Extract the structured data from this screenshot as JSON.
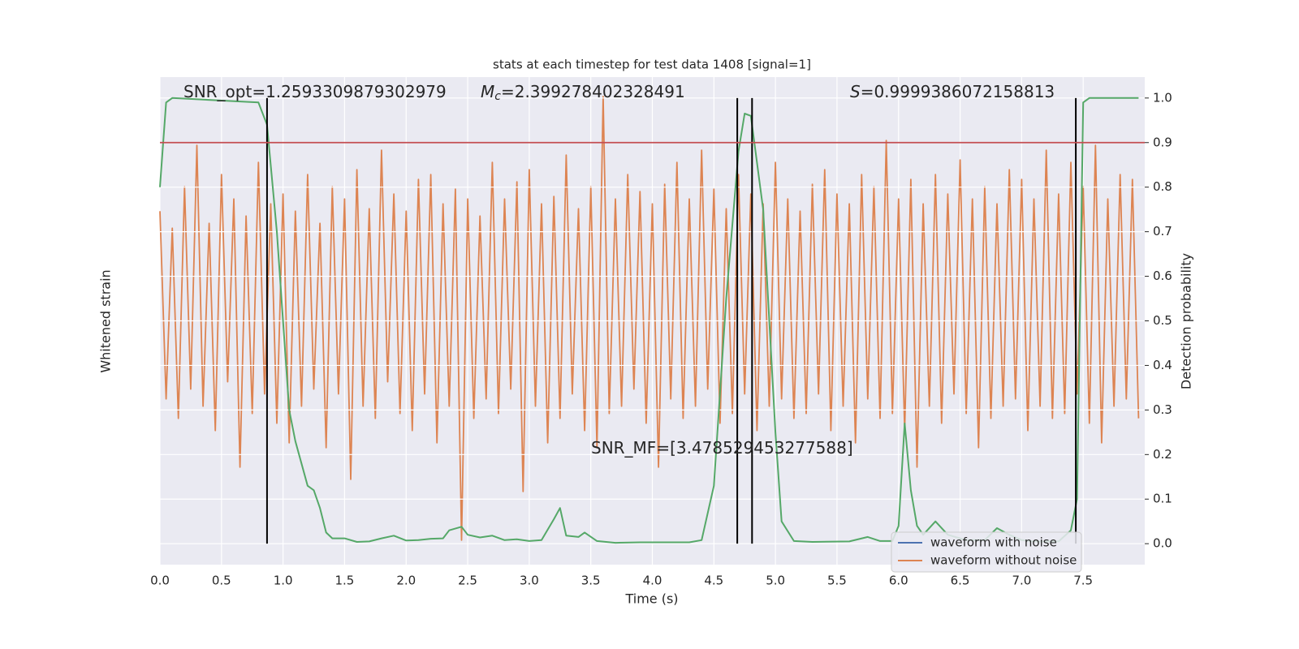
{
  "chart_data": {
    "type": "line",
    "title": "stats at each timestep for test data 1408 [signal=1]",
    "xlabel": "Time (s)",
    "ylabel": "Whitened strain",
    "y2label": "Detection probability",
    "xlim": [
      0,
      8.0
    ],
    "xticks": [
      {
        "value": 0,
        "label": "0.0"
      },
      0.5,
      {
        "value": 1,
        "label": "1.0"
      },
      1.5,
      {
        "value": 2,
        "label": "2.0"
      },
      2.5,
      {
        "value": 3,
        "label": "3.0"
      },
      3.5,
      {
        "value": 4,
        "label": "4.0"
      },
      4.5,
      {
        "value": 5,
        "label": "5.0"
      },
      5.5,
      {
        "value": 6,
        "label": "6.0"
      },
      6.5,
      {
        "value": 7,
        "label": "7.0"
      },
      7.5
    ],
    "ylim": [
      -1.1,
      0.9
    ],
    "y2lim": [
      -0.047,
      1.047
    ],
    "y2ticks": [
      {
        "value": 0,
        "label": "0.0"
      },
      0.1,
      0.2,
      0.3,
      0.4,
      0.5,
      0.6,
      0.7,
      0.8,
      0.9,
      {
        "value": 1,
        "label": "1.0"
      }
    ],
    "grid": true,
    "series": [
      {
        "color": "#dd8452",
        "axis": "y",
        "x": [
          0,
          0.05,
          0.1,
          0.15,
          0.2,
          0.25,
          0.3,
          0.35,
          0.4,
          0.45,
          0.5,
          0.55,
          0.6,
          0.65,
          0.7,
          0.75,
          0.8,
          0.85,
          0.9,
          0.95,
          1,
          1.05,
          1.1,
          1.15,
          1.2,
          1.25,
          1.3,
          1.35,
          1.4,
          1.45,
          1.5,
          1.55,
          1.6,
          1.65,
          1.7,
          1.75,
          1.8,
          1.85,
          1.9,
          1.95,
          2,
          2.05,
          2.1,
          2.15,
          2.2,
          2.25,
          2.3,
          2.35,
          2.4,
          2.45,
          2.5,
          2.55,
          2.6,
          2.65,
          2.7,
          2.75,
          2.8,
          2.85,
          2.9,
          2.95,
          3,
          3.05,
          3.1,
          3.15,
          3.2,
          3.25,
          3.3,
          3.35,
          3.4,
          3.45,
          3.5,
          3.55,
          3.6,
          3.65,
          3.7,
          3.75,
          3.8,
          3.85,
          3.9,
          3.95,
          4,
          4.05,
          4.1,
          4.15,
          4.2,
          4.25,
          4.3,
          4.35,
          4.4,
          4.45,
          4.5,
          4.55,
          4.6,
          4.65,
          4.7,
          4.75,
          4.8,
          4.85,
          4.9,
          4.95,
          5,
          5.05,
          5.1,
          5.15,
          5.2,
          5.25,
          5.3,
          5.35,
          5.4,
          5.45,
          5.5,
          5.55,
          5.6,
          5.65,
          5.7,
          5.75,
          5.8,
          5.85,
          5.9,
          5.95,
          6,
          6.05,
          6.1,
          6.15,
          6.2,
          6.25,
          6.3,
          6.35,
          6.4,
          6.45,
          6.5,
          6.55,
          6.6,
          6.65,
          6.7,
          6.75,
          6.8,
          6.85,
          6.9,
          6.95,
          7,
          7.05,
          7.1,
          7.15,
          7.2,
          7.25,
          7.3,
          7.35,
          7.4,
          7.45,
          7.5,
          7.55,
          7.6,
          7.65,
          7.7,
          7.75,
          7.8,
          7.85,
          7.9,
          7.95
        ],
        "values": [
          0.35,
          -0.42,
          0.28,
          -0.5,
          0.45,
          -0.38,
          0.62,
          -0.45,
          0.3,
          -0.55,
          0.5,
          -0.35,
          0.4,
          -0.7,
          0.33,
          -0.48,
          0.55,
          -0.4,
          0.38,
          -0.52,
          0.42,
          -0.6,
          0.35,
          -0.45,
          0.5,
          -0.38,
          0.3,
          -0.62,
          0.45,
          -0.4,
          0.4,
          -0.75,
          0.52,
          -0.45,
          0.36,
          -0.5,
          0.6,
          -0.35,
          0.42,
          -0.48,
          0.35,
          -0.55,
          0.48,
          -0.4,
          0.5,
          -0.6,
          0.38,
          -0.45,
          0.44,
          -1.0,
          0.4,
          -0.5,
          0.33,
          -0.42,
          0.55,
          -0.48,
          0.4,
          -0.38,
          0.47,
          -0.8,
          0.52,
          -0.45,
          0.38,
          -0.6,
          0.41,
          -0.5,
          0.58,
          -0.4,
          0.36,
          -0.55,
          0.45,
          -0.62,
          0.82,
          -0.48,
          0.4,
          -0.45,
          0.5,
          -0.38,
          0.43,
          -0.52,
          0.38,
          -0.7,
          0.46,
          -0.42,
          0.55,
          -0.5,
          0.4,
          -0.45,
          0.6,
          -0.38,
          0.44,
          -0.52,
          0.36,
          -0.48,
          0.5,
          -0.4,
          0.42,
          -0.55,
          0.38,
          -0.45,
          0.55,
          -0.42,
          0.4,
          -0.5,
          0.35,
          -0.48,
          0.46,
          -0.4,
          0.52,
          -0.55,
          0.42,
          -0.45,
          0.38,
          -0.6,
          0.5,
          -0.42,
          0.45,
          -0.5,
          0.64,
          -0.48,
          0.4,
          -0.55,
          0.48,
          -0.7,
          0.38,
          -0.45,
          0.5,
          -0.52,
          0.42,
          -0.4,
          0.56,
          -0.48,
          0.4,
          -0.62,
          0.45,
          -0.5,
          0.38,
          -0.45,
          0.52,
          -0.42,
          0.48,
          -0.55,
          0.4,
          -0.45,
          0.6,
          -0.5,
          0.42,
          -0.48,
          0.55,
          -0.4,
          0.45,
          -0.52,
          0.62,
          -0.6,
          0.4,
          -0.45,
          0.5,
          -0.42,
          0.48,
          -0.5
        ]
      },
      {
        "color": "#55a868",
        "axis": "y2",
        "x": [
          0,
          0.05,
          0.1,
          0.8,
          0.87,
          0.95,
          1,
          1.05,
          1.1,
          1.2,
          1.25,
          1.3,
          1.35,
          1.4,
          1.5,
          1.6,
          1.7,
          1.8,
          1.9,
          2,
          2.1,
          2.2,
          2.3,
          2.35,
          2.45,
          2.5,
          2.6,
          2.7,
          2.8,
          2.9,
          3,
          3.1,
          3.2,
          3.25,
          3.3,
          3.4,
          3.45,
          3.55,
          3.7,
          3.9,
          4.1,
          4.3,
          4.4,
          4.5,
          4.6,
          4.7,
          4.75,
          4.8,
          4.9,
          5,
          5.05,
          5.15,
          5.3,
          5.6,
          5.75,
          5.85,
          5.95,
          6,
          6.05,
          6.1,
          6.15,
          6.2,
          6.3,
          6.4,
          6.55,
          6.7,
          6.8,
          6.9,
          7,
          7.1,
          7.3,
          7.4,
          7.45,
          7.5,
          7.55,
          7.95
        ],
        "values": [
          0.8,
          0.99,
          1.0,
          0.99,
          0.94,
          0.7,
          0.5,
          0.3,
          0.23,
          0.13,
          0.12,
          0.08,
          0.025,
          0.012,
          0.012,
          0.004,
          0.005,
          0.012,
          0.018,
          0.007,
          0.008,
          0.011,
          0.012,
          0.03,
          0.038,
          0.02,
          0.014,
          0.018,
          0.008,
          0.01,
          0.006,
          0.008,
          0.055,
          0.08,
          0.018,
          0.015,
          0.025,
          0.006,
          0.002,
          0.003,
          0.003,
          0.003,
          0.008,
          0.13,
          0.55,
          0.88,
          0.965,
          0.96,
          0.75,
          0.25,
          0.05,
          0.006,
          0.004,
          0.005,
          0.015,
          0.006,
          0.006,
          0.04,
          0.27,
          0.12,
          0.04,
          0.02,
          0.05,
          0.02,
          0.008,
          0.008,
          0.035,
          0.02,
          0.008,
          0.005,
          0.005,
          0.03,
          0.1,
          0.99,
          1.0,
          1.0
        ]
      }
    ],
    "vlines": {
      "x": [
        0.87,
        4.69,
        4.81,
        7.44
      ],
      "ymin": 0,
      "ymax": 1,
      "color": "#000000"
    },
    "hline": {
      "y": 0.9,
      "color": "#c44e52"
    },
    "annotations": [
      {
        "text": "SNR_opt=1.2593309879302979"
      },
      {
        "symbol": "M",
        "subscript": "c",
        "text": "=2.399278402328491"
      },
      {
        "symbol": "S",
        "text": "=0.9999386072158813"
      },
      {
        "text": "SNR_MF=[3.478529453277588]"
      }
    ],
    "legend": {
      "loc": "lower right",
      "entries": [
        {
          "name": "waveform with noise",
          "color": "#4c72b0"
        },
        {
          "name": "waveform without noise",
          "color": "#dd8452"
        }
      ]
    }
  }
}
